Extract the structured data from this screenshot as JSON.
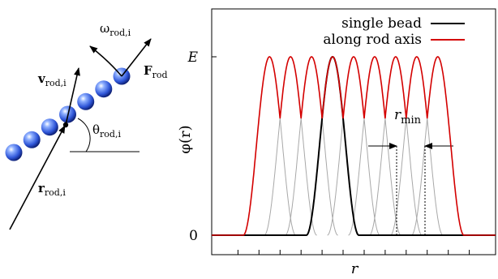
{
  "rod_diagram": {
    "v_main": "v",
    "v_sub": "rod,i",
    "omega_main": "ω",
    "omega_sub": "rod,i",
    "F_main": "F",
    "F_sub": "rod",
    "theta_main": "θ",
    "theta_sub": "rod,i",
    "r_main": "r",
    "r_sub": "rod,i",
    "bead_count": 7,
    "bead_color": "#2f56d8"
  },
  "chart_data": {
    "type": "line",
    "xlabel": "r",
    "ylabel": "φ(r)",
    "ytick_labels": [
      "0",
      "E"
    ],
    "legend": [
      {
        "name": "single bead",
        "color": "#000000"
      },
      {
        "name": "along rod axis",
        "color": "#d40000"
      }
    ],
    "legend_position": "top-right",
    "annotation": {
      "main": "r",
      "sub": "min"
    },
    "bead_centers": [
      -6,
      -4,
      -2,
      0,
      2,
      4,
      6,
      8,
      10
    ],
    "single_bead_center": 0,
    "x_range": [
      -11.5,
      15.5
    ],
    "x_ticks": [
      -9,
      -7,
      -5,
      -3,
      -1,
      1,
      3,
      5,
      7,
      9,
      11,
      13
    ],
    "grid": false
  }
}
